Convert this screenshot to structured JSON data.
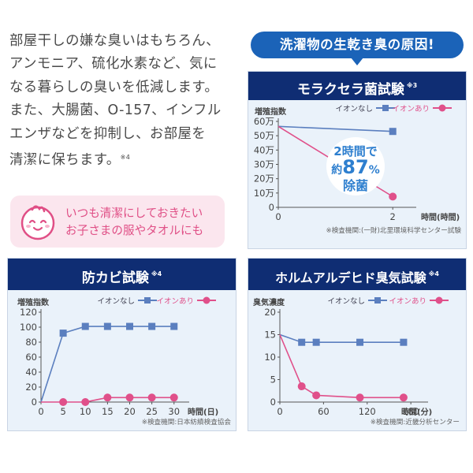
{
  "intro": {
    "lines": [
      "部屋干しの嫌な臭いはもちろん、",
      "アンモニア、硫化水素など、気に",
      "なる暮らしの臭いを低減します。",
      "また、大腸菌、O-157、インフル",
      "エンザなどを抑制し、お部屋を",
      "清潔に保ちます。"
    ],
    "note_mark": "※4"
  },
  "note_box": {
    "line1": "いつも清潔にしておきたい",
    "line2": "お子さまの服やタオルにも"
  },
  "banner": "洗濯物の生乾き臭の原因!",
  "colors": {
    "navy": "#0f2d73",
    "blue_series": "#5b7fbf",
    "pink_series": "#e0508a",
    "panel_bg": "#eaf2fa"
  },
  "chart_data": [
    {
      "type": "line",
      "title": "モラクセラ菌試験",
      "title_mark": "※3",
      "ylabel": "増殖指数",
      "xlabel": "時間(時間)",
      "yticks": [
        "0",
        "10万",
        "20万",
        "30万",
        "40万",
        "50万",
        "60万"
      ],
      "ylim": [
        0,
        600000
      ],
      "xticks": [
        {
          "v": 0,
          "label": "0"
        },
        {
          "v": 2,
          "label": "2"
        }
      ],
      "xlim": [
        0,
        2.3
      ],
      "series": [
        {
          "name": "イオンなし",
          "marker": "square",
          "color": "#5b7fbf",
          "x": [
            0,
            2
          ],
          "y": [
            565000,
            530000
          ],
          "show_first_marker": false
        },
        {
          "name": "イオンあり",
          "marker": "circle",
          "color": "#e0508a",
          "x": [
            0,
            2
          ],
          "y": [
            565000,
            75000
          ],
          "show_first_marker": false
        }
      ],
      "annotation": {
        "l1": "2時間で",
        "l2a": "約",
        "l2b": "87",
        "l2c": "%",
        "l3": "除菌"
      },
      "source": "※検査機関:(一財)北里環境科学センター試験"
    },
    {
      "type": "line",
      "title": "防カビ試験",
      "title_mark": "※4",
      "ylabel": "増殖指数",
      "xlabel": "時間(日)",
      "yticks": [
        "0",
        "20",
        "40",
        "60",
        "80",
        "100",
        "120"
      ],
      "ylim": [
        0,
        120
      ],
      "xticks": [
        {
          "v": 0,
          "label": "0"
        },
        {
          "v": 5,
          "label": "5"
        },
        {
          "v": 10,
          "label": "10"
        },
        {
          "v": 15,
          "label": "15"
        },
        {
          "v": 20,
          "label": "20"
        },
        {
          "v": 25,
          "label": "25"
        },
        {
          "v": 30,
          "label": "30"
        }
      ],
      "xlim": [
        0,
        32
      ],
      "series": [
        {
          "name": "イオンなし",
          "marker": "square",
          "color": "#5b7fbf",
          "x": [
            0,
            5,
            10,
            15,
            20,
            25,
            30
          ],
          "y": [
            0,
            92,
            101,
            101,
            101,
            101,
            101
          ],
          "show_first_marker": false
        },
        {
          "name": "イオンあり",
          "marker": "circle",
          "color": "#e0508a",
          "x": [
            0,
            5,
            10,
            15,
            20,
            25,
            30
          ],
          "y": [
            0,
            0,
            0,
            6,
            6,
            6,
            6
          ],
          "show_first_marker": false
        }
      ],
      "source": "※検査機関:日本紡績検査協会"
    },
    {
      "type": "line",
      "title": "ホルムアルデヒド臭気試験",
      "title_mark": "※4",
      "ylabel": "臭気濃度",
      "xlabel": "時間(分)",
      "yticks": [
        "0",
        "5",
        "10",
        "15",
        "20"
      ],
      "ylim": [
        0,
        20
      ],
      "xticks": [
        {
          "v": 0,
          "label": "0"
        },
        {
          "v": 60,
          "label": "60"
        },
        {
          "v": 120,
          "label": "120"
        },
        {
          "v": 180,
          "label": "180"
        }
      ],
      "xlim": [
        0,
        195
      ],
      "series": [
        {
          "name": "イオンなし",
          "marker": "square",
          "color": "#5b7fbf",
          "x": [
            0,
            30,
            50,
            110,
            170
          ],
          "y": [
            15,
            13.3,
            13.3,
            13.3,
            13.3
          ],
          "show_first_marker": false
        },
        {
          "name": "イオンあり",
          "marker": "circle",
          "color": "#e0508a",
          "x": [
            0,
            30,
            50,
            110,
            170
          ],
          "y": [
            15,
            3.5,
            1.5,
            1,
            1
          ],
          "show_first_marker": false
        }
      ],
      "source": "※検査機関:近畿分析センター"
    }
  ]
}
